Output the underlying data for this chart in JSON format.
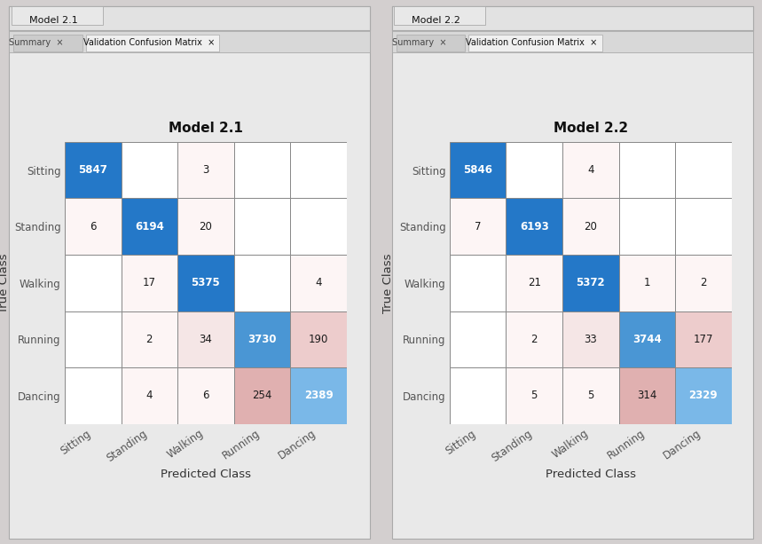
{
  "model1": {
    "title": "Model 2.1",
    "matrix": [
      [
        5847,
        0,
        3,
        0,
        0
      ],
      [
        6,
        6194,
        20,
        0,
        0
      ],
      [
        0,
        17,
        5375,
        0,
        4
      ],
      [
        0,
        2,
        34,
        3730,
        190
      ],
      [
        0,
        4,
        6,
        254,
        2389
      ]
    ]
  },
  "model2": {
    "title": "Model 2.2",
    "matrix": [
      [
        5846,
        0,
        4,
        0,
        0
      ],
      [
        7,
        6193,
        20,
        0,
        0
      ],
      [
        0,
        21,
        5372,
        1,
        2
      ],
      [
        0,
        2,
        33,
        3744,
        177
      ],
      [
        0,
        5,
        5,
        314,
        2329
      ]
    ]
  },
  "classes": [
    "Sitting",
    "Standing",
    "Walking",
    "Running",
    "Dancing"
  ],
  "xlabel": "Predicted Class",
  "ylabel": "True Class",
  "bg_color": "#d3cfcf",
  "panel_color": "#e9e9e9",
  "white_text_color": "#ffffff",
  "dark_text_color": "#1a1a1a",
  "grid_color": "#888888",
  "diag_dark_blue": "#2478c8",
  "diag_mid_blue": "#4a96d4",
  "diag_light_blue": "#7ab8e8",
  "off_zero": "#ffffff",
  "off_very_light": "#fdf5f5",
  "off_light": "#f5e6e6",
  "off_medium": "#edcccc",
  "off_strong": "#e0b0b0"
}
